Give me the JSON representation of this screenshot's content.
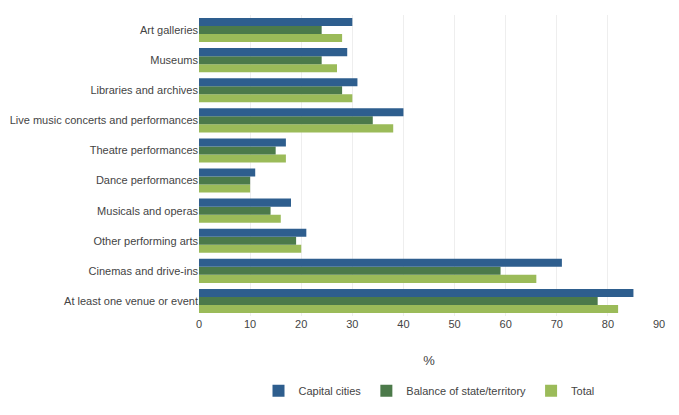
{
  "chart_data": {
    "type": "bar",
    "orientation": "horizontal",
    "categories": [
      "At least one venue or event",
      "Cinemas and drive-ins",
      "Other performing arts",
      "Musicals and operas",
      "Dance performances",
      "Theatre performances",
      "Live music concerts and performances",
      "Libraries and archives",
      "Museums",
      "Art galleries"
    ],
    "series": [
      {
        "name": "Capital cities",
        "color": "#2E5E8E",
        "values": [
          85,
          71,
          21,
          18,
          11,
          17,
          40,
          31,
          29,
          30
        ]
      },
      {
        "name": "Balance of state/territory",
        "color": "#4C7A4A",
        "values": [
          78,
          59,
          19,
          14,
          10,
          15,
          34,
          28,
          24,
          24
        ]
      },
      {
        "name": "Total",
        "color": "#9BBB59",
        "values": [
          82,
          66,
          20,
          16,
          10,
          17,
          38,
          30,
          27,
          28
        ]
      }
    ],
    "xlabel": "%",
    "xlim": [
      0,
      90
    ],
    "xticks": [
      0,
      10,
      20,
      30,
      40,
      50,
      60,
      70,
      80,
      90
    ],
    "grid": true,
    "legend": "bottom"
  }
}
